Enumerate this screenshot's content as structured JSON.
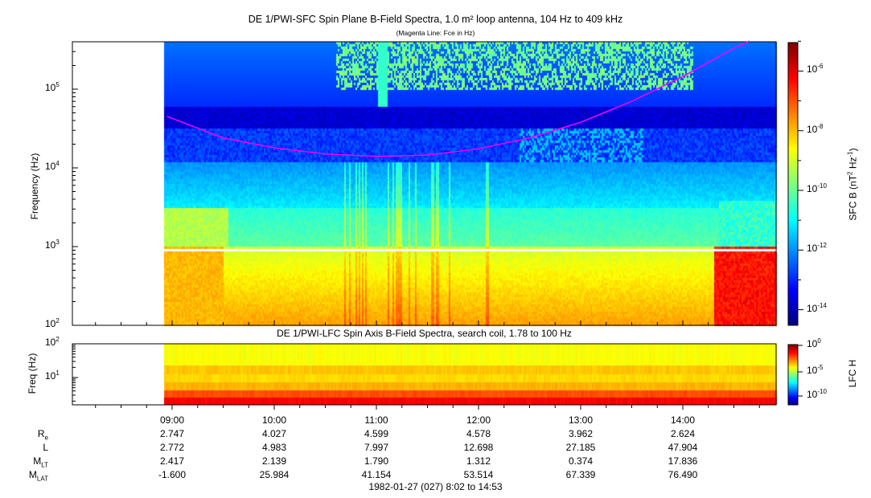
{
  "title": "DE 1/PWI-SFC  Spin Plane B-Field Spectra, 1.0 m² loop antenna, 104 Hz to 409 kHz",
  "subtitle": "(Magenta Line: Fce in Hz)",
  "footer": "1982-01-27 (027) 8:02 to 14:53",
  "chart_data": [
    {
      "type": "heatmap",
      "panel": "SFC",
      "title": "DE 1/PWI-SFC  Spin Plane B-Field Spectra, 1.0 m² loop antenna, 104 Hz to 409 kHz",
      "ylabel": "Frequency (Hz)",
      "yscale": "log",
      "ylim": [
        104,
        409000
      ],
      "yticks": [
        "10^2",
        "10^3",
        "10^4",
        "10^5"
      ],
      "xlim": [
        "08:02",
        "14:53"
      ],
      "data_start": "08:57",
      "data_gap_hz": [
        900,
        1000
      ],
      "colorbar": {
        "label": "SFC B (nT^2 Hz^-1)",
        "scale": "log",
        "range": [
          3e-15,
          9e-06
        ],
        "ticks": [
          "10^-6",
          "10^-8",
          "10^-10",
          "10^-12",
          "10^-14"
        ],
        "colormap": "jet"
      },
      "fce_line": {
        "color": "#ff00ff",
        "time_h": [
          8.95,
          9.5,
          10,
          10.5,
          11,
          11.5,
          12,
          12.5,
          13,
          13.5,
          14,
          14.5,
          14.65
        ],
        "freq_hz": [
          45000,
          24000,
          18000,
          15000,
          14000,
          14500,
          17500,
          24000,
          38000,
          70000,
          145000,
          330000,
          409000
        ]
      }
    },
    {
      "type": "heatmap",
      "panel": "LFC",
      "title": "DE 1/PWI-LFC  Spin Axis B-Field Spectra, search coil, 1.78 to 100 Hz",
      "ylabel": "Freq (Hz)",
      "yscale": "log",
      "ylim": [
        1.78,
        100
      ],
      "yticks": [
        "10^1",
        "10^2"
      ],
      "colorbar": {
        "label": "LFC H",
        "scale": "log",
        "range": [
          1e-12,
          1
        ],
        "ticks": [
          "10^0",
          "10^-5",
          "10^-10"
        ],
        "colormap": "jet"
      }
    }
  ],
  "time_axis": {
    "labels": [
      "09:00",
      "10:00",
      "11:00",
      "12:00",
      "13:00",
      "14:00"
    ]
  },
  "ephemeris": [
    {
      "label": "R",
      "sub": "e",
      "values": [
        "2.747",
        "4.027",
        "4.599",
        "4.578",
        "3.962",
        "2.624"
      ]
    },
    {
      "label": "L",
      "sub": "",
      "values": [
        "2.772",
        "4.983",
        "7.997",
        "12.698",
        "27.185",
        "47.904"
      ]
    },
    {
      "label": "M",
      "sub": "LT",
      "values": [
        "2.417",
        "2.139",
        "1.790",
        "1.312",
        "0.374",
        "17.836"
      ]
    },
    {
      "label": "M",
      "sub": "LAT",
      "values": [
        "-1.600",
        "25.984",
        "41.154",
        "53.514",
        "67.339",
        "76.490"
      ]
    }
  ]
}
